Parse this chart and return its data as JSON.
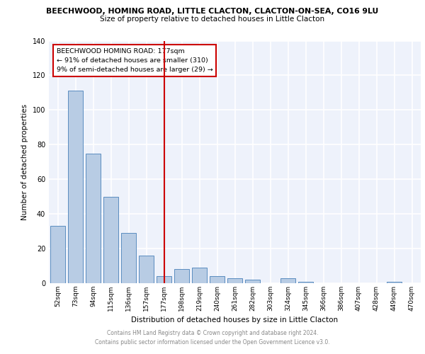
{
  "title": "BEECHWOOD, HOMING ROAD, LITTLE CLACTON, CLACTON-ON-SEA, CO16 9LU",
  "subtitle": "Size of property relative to detached houses in Little Clacton",
  "xlabel": "Distribution of detached houses by size in Little Clacton",
  "ylabel": "Number of detached properties",
  "categories": [
    "52sqm",
    "73sqm",
    "94sqm",
    "115sqm",
    "136sqm",
    "157sqm",
    "177sqm",
    "198sqm",
    "219sqm",
    "240sqm",
    "261sqm",
    "282sqm",
    "303sqm",
    "324sqm",
    "345sqm",
    "366sqm",
    "386sqm",
    "407sqm",
    "428sqm",
    "449sqm",
    "470sqm"
  ],
  "values": [
    33,
    111,
    75,
    50,
    29,
    16,
    4,
    8,
    9,
    4,
    3,
    2,
    0,
    3,
    1,
    0,
    0,
    0,
    0,
    1,
    0
  ],
  "bar_color": "#b8cce4",
  "bar_edge_color": "#5b8dc0",
  "vline_x_index": 6,
  "vline_color": "#cc0000",
  "annotation_lines": [
    "BEECHWOOD HOMING ROAD: 177sqm",
    "← 91% of detached houses are smaller (310)",
    "9% of semi-detached houses are larger (29) →"
  ],
  "annotation_box_color": "#cc0000",
  "ylim": [
    0,
    140
  ],
  "yticks": [
    0,
    20,
    40,
    60,
    80,
    100,
    120,
    140
  ],
  "background_color": "#eef2fb",
  "grid_color": "#ffffff",
  "footer_line1": "Contains HM Land Registry data © Crown copyright and database right 2024.",
  "footer_line2": "Contains public sector information licensed under the Open Government Licence v3.0."
}
